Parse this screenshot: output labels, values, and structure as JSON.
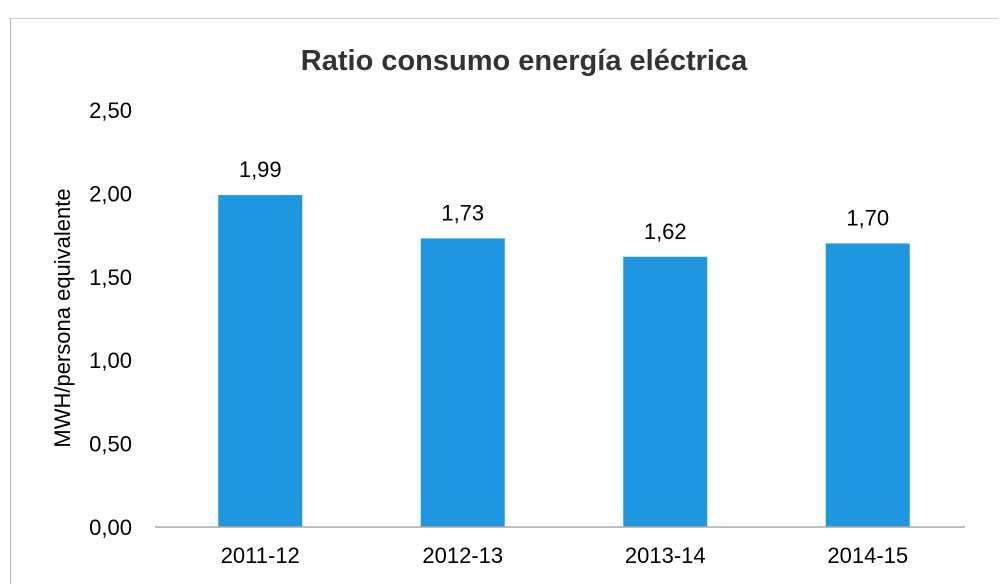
{
  "chart_data": {
    "type": "bar",
    "title": "Ratio consumo energía eléctrica",
    "xlabel": "",
    "ylabel": "MWH/persona equivalente",
    "categories": [
      "2011-12",
      "2012-13",
      "2013-14",
      "2014-15"
    ],
    "values": [
      1.99,
      1.73,
      1.62,
      1.7
    ],
    "data_labels": [
      "1,99",
      "1,73",
      "1,62",
      "1,70"
    ],
    "ylim": [
      0,
      2.5
    ],
    "yticks": [
      0,
      0.5,
      1.0,
      1.5,
      2.0,
      2.5
    ],
    "ytick_labels": [
      "0,00",
      "0,50",
      "1,00",
      "1,50",
      "2,00",
      "2,50"
    ],
    "bar_color": "#1f96e0",
    "grid": false,
    "legend": "none"
  }
}
